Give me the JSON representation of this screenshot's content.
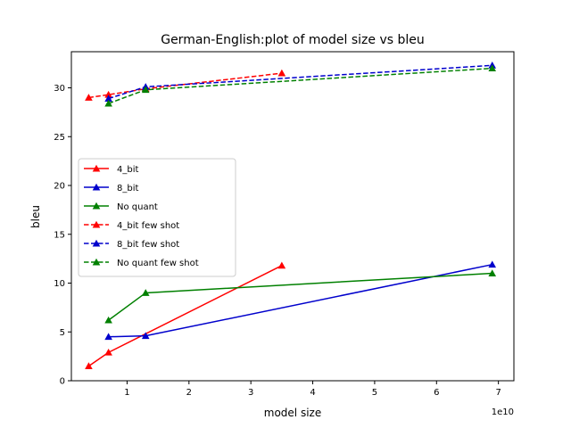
{
  "chart_data": {
    "type": "line",
    "title": "German-English:plot of model size vs bleu",
    "xlabel": "model size",
    "ylabel": "bleu",
    "x_offset_label": "1e10",
    "xlim": [
      1000000000.0,
      72500000000.0
    ],
    "ylim": [
      0,
      33.7
    ],
    "x_ticks": [
      1,
      2,
      3,
      4,
      5,
      6,
      7
    ],
    "y_ticks": [
      0,
      5,
      10,
      15,
      20,
      25,
      30
    ],
    "grid": false,
    "legend_position": "center-left",
    "series": [
      {
        "name": "4_bit",
        "color": "#ff0000",
        "dash": false,
        "marker": "triangle",
        "x": [
          3800000000.0,
          7000000000.0,
          35000000000.0
        ],
        "y": [
          1.5,
          2.9,
          11.8
        ]
      },
      {
        "name": "8_bit",
        "color": "#0000cc",
        "dash": false,
        "marker": "triangle",
        "x": [
          7000000000.0,
          13000000000.0,
          69000000000.0
        ],
        "y": [
          4.5,
          4.6,
          11.9
        ]
      },
      {
        "name": "No quant",
        "color": "#008000",
        "dash": false,
        "marker": "triangle",
        "x": [
          7000000000.0,
          13000000000.0,
          69000000000.0
        ],
        "y": [
          6.2,
          9.0,
          11.0
        ]
      },
      {
        "name": "4_bit few shot",
        "color": "#ff0000",
        "dash": true,
        "marker": "triangle",
        "x": [
          3800000000.0,
          7000000000.0,
          13000000000.0,
          35000000000.0
        ],
        "y": [
          29.0,
          29.3,
          29.9,
          31.5
        ]
      },
      {
        "name": "8_bit few shot",
        "color": "#0000cc",
        "dash": true,
        "marker": "triangle",
        "x": [
          7000000000.0,
          13000000000.0,
          69000000000.0
        ],
        "y": [
          28.9,
          30.1,
          32.3
        ]
      },
      {
        "name": "No quant few shot",
        "color": "#008000",
        "dash": true,
        "marker": "triangle",
        "x": [
          7000000000.0,
          13000000000.0,
          69000000000.0
        ],
        "y": [
          28.4,
          29.8,
          32.0
        ]
      }
    ]
  }
}
